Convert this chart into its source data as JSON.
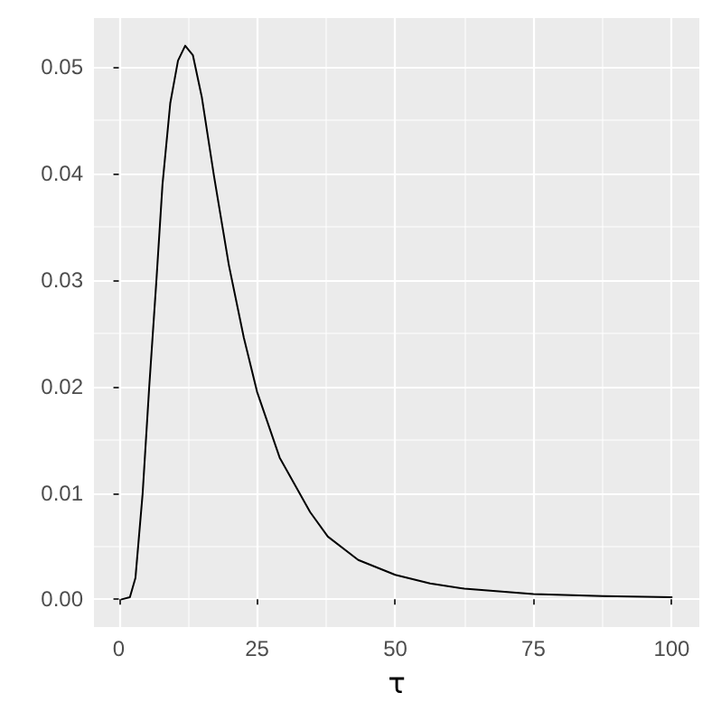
{
  "chart_data": {
    "type": "line",
    "xlabel": "τ",
    "x": [
      0.5,
      2,
      3,
      4.3,
      5.5,
      6.8,
      7.9,
      9.3,
      10.7,
      12,
      13.4,
      15,
      17.2,
      19.9,
      22.6,
      25,
      29.1,
      34.6,
      37.8,
      43.3,
      50,
      56.3,
      62.5,
      75,
      87.5,
      100
    ],
    "series": [
      {
        "color": "#000000",
        "values": [
          0,
          0.0002,
          0.002,
          0.0099,
          0.02,
          0.03,
          0.039,
          0.0466,
          0.0506,
          0.052,
          0.0511,
          0.0472,
          0.0398,
          0.0314,
          0.0246,
          0.0195,
          0.0133,
          0.0082,
          0.0059,
          0.0037,
          0.0023,
          0.0015,
          0.001,
          0.0005,
          0.0003,
          0.0002
        ]
      }
    ],
    "xlim": [
      -4.5,
      105
    ],
    "xticks": [
      0,
      25,
      50,
      75,
      100
    ],
    "ylim": [
      -0.0026,
      0.0546
    ],
    "yticks": [
      {
        "value": 0,
        "label": "0.00"
      },
      {
        "value": 0.01,
        "label": "0.01"
      },
      {
        "value": 0.02,
        "label": "0.02"
      },
      {
        "value": 0.03,
        "label": "0.03"
      },
      {
        "value": 0.04,
        "label": "0.04"
      },
      {
        "value": 0.05,
        "label": "0.05"
      }
    ],
    "grid": true,
    "marker": "none",
    "line_style": "solid"
  }
}
